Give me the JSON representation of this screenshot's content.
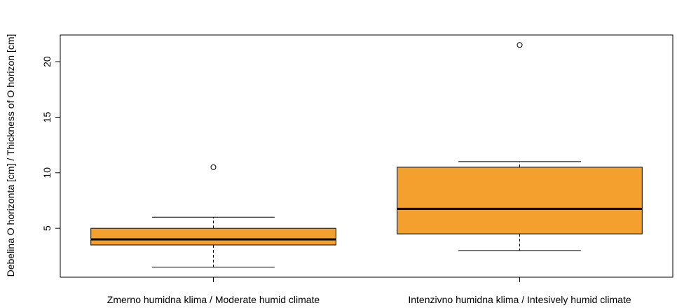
{
  "chart_data": {
    "type": "box",
    "xlabel": "",
    "ylabel": "Debelina O horizonta [cm] / Thickness of O horizon [cm]",
    "ylim": [
      0.6,
      22.4
    ],
    "yticks": [
      5,
      10,
      15,
      20
    ],
    "grid": false,
    "legend": "none",
    "box_color": "#F4A02E",
    "categories": [
      "Zmerno humidna klima / Moderate humid climate",
      "Intenzivno humidna klima / Intesively humid climate"
    ],
    "boxes": [
      {
        "whisker_low": 1.5,
        "q1": 3.5,
        "median": 4.0,
        "q3": 5.0,
        "whisker_high": 6.0,
        "outliers": [
          10.5
        ]
      },
      {
        "whisker_low": 3.0,
        "q1": 4.5,
        "median": 6.75,
        "q3": 10.5,
        "whisker_high": 11.0,
        "outliers": [
          21.5
        ]
      }
    ]
  }
}
